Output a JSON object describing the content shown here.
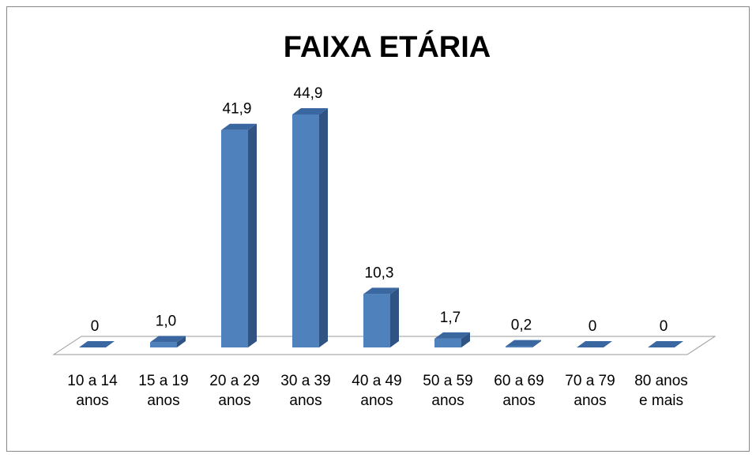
{
  "chart_data": {
    "type": "bar3d",
    "title": "FAIXA ETÁRIA",
    "categories": [
      "10 a 14 anos",
      "15 a 19 anos",
      "20 a 29 anos",
      "30 a 39 anos",
      "40 a 49 anos",
      "50 a 59 anos",
      "60 a 69 anos",
      "70 a 79 anos",
      "80 anos e mais"
    ],
    "values": [
      0,
      1.0,
      41.9,
      44.9,
      10.3,
      1.7,
      0.2,
      0,
      0
    ],
    "value_labels": [
      "0",
      "1,0",
      "41,9",
      "44,9",
      "10,3",
      "1,7",
      "0,2",
      "0",
      "0"
    ],
    "color": "#4f81bd"
  }
}
